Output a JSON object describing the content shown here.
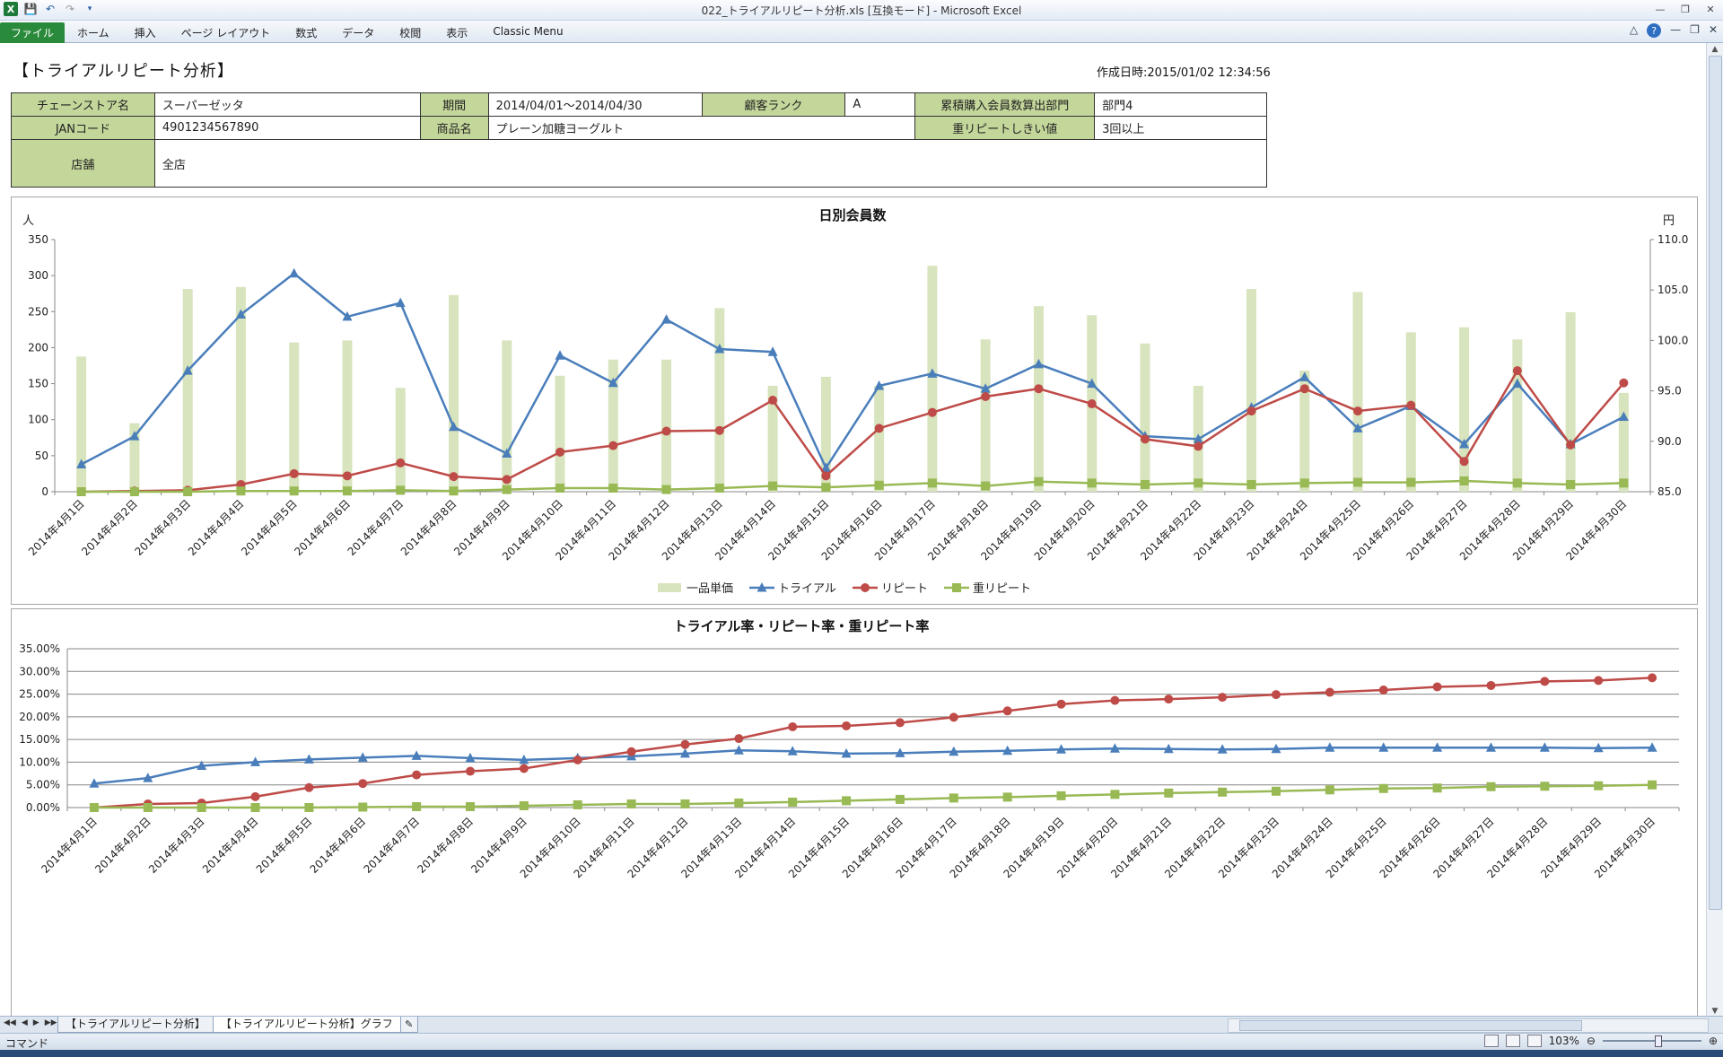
{
  "window": {
    "title": "022_トライアルリピート分析.xls  [互換モード]  -  Microsoft Excel",
    "controls": [
      "minimize-icon",
      "restore-icon",
      "close-icon"
    ]
  },
  "ribbon": {
    "tabs": [
      "ファイル",
      "ホーム",
      "挿入",
      "ページ レイアウト",
      "数式",
      "データ",
      "校閲",
      "表示",
      "Classic Menu"
    ]
  },
  "sheet": {
    "title": "【トライアルリピート分析】",
    "created": "作成日時:2015/01/02 12:34:56",
    "info": {
      "chain_label": "チェーンストア名",
      "chain_value": "スーパーゼッタ",
      "period_label": "期間",
      "period_value": "2014/04/01～2014/04/30",
      "rank_label": "顧客ランク",
      "rank_value": "A",
      "dept_label": "累積購入会員数算出部門",
      "dept_value": "部門4",
      "jan_label": "JANコード",
      "jan_value": "4901234567890",
      "product_label": "商品名",
      "product_value": "プレーン加糖ヨーグルト",
      "repeat_label": "重リピートしきい値",
      "repeat_value": "3回以上",
      "store_label": "店舗",
      "store_value": "全店"
    }
  },
  "chart_data": [
    {
      "type": "bar+line",
      "title": "日別会員数",
      "ylabel_left": "人",
      "ylabel_right": "円",
      "ylim_left": [
        0,
        350
      ],
      "yticks_left": [
        "0",
        "50",
        "100",
        "150",
        "200",
        "250",
        "300",
        "350"
      ],
      "ylim_right": [
        85,
        110
      ],
      "yticks_right": [
        "85.0",
        "90.0",
        "95.0",
        "100.0",
        "105.0",
        "110.0"
      ],
      "grid": false,
      "legend_position": "bottom",
      "categories": [
        "2014年4月1日",
        "2014年4月2日",
        "2014年4月3日",
        "2014年4月4日",
        "2014年4月5日",
        "2014年4月6日",
        "2014年4月7日",
        "2014年4月8日",
        "2014年4月9日",
        "2014年4月10日",
        "2014年4月11日",
        "2014年4月12日",
        "2014年4月13日",
        "2014年4月14日",
        "2014年4月15日",
        "2014年4月16日",
        "2014年4月17日",
        "2014年4月18日",
        "2014年4月19日",
        "2014年4月20日",
        "2014年4月21日",
        "2014年4月22日",
        "2014年4月23日",
        "2014年4月24日",
        "2014年4月25日",
        "2014年4月26日",
        "2014年4月27日",
        "2014年4月28日",
        "2014年4月29日",
        "2014年4月30日"
      ],
      "series": [
        {
          "name": "一品単価",
          "kind": "bar",
          "axis": "right",
          "color": "#d7e4bd",
          "values": [
            98.4,
            91.8,
            105.1,
            105.3,
            99.8,
            100.0,
            95.3,
            104.5,
            100.0,
            96.5,
            98.1,
            98.1,
            103.2,
            95.5,
            96.4,
            95.5,
            107.4,
            100.1,
            103.4,
            102.5,
            99.7,
            95.5,
            105.1,
            97.0,
            104.8,
            100.8,
            101.3,
            100.1,
            102.8,
            94.8
          ]
        },
        {
          "name": "トライアル",
          "kind": "line",
          "axis": "left",
          "color": "#4a7ebb",
          "marker": "triangle",
          "values": [
            38,
            77,
            168,
            246,
            303,
            243,
            262,
            90,
            53,
            189,
            151,
            239,
            198,
            194,
            33,
            147,
            164,
            143,
            177,
            150,
            77,
            73,
            117,
            159,
            88,
            119,
            66,
            150,
            66,
            104
          ]
        },
        {
          "name": "リピート",
          "kind": "line",
          "axis": "left",
          "color": "#be4b48",
          "marker": "circle",
          "values": [
            0,
            1,
            2,
            10,
            25,
            22,
            40,
            21,
            17,
            55,
            64,
            84,
            85,
            127,
            22,
            88,
            110,
            132,
            143,
            122,
            73,
            63,
            112,
            143,
            112,
            120,
            42,
            168,
            65,
            151
          ]
        },
        {
          "name": "重リピート",
          "kind": "line",
          "axis": "left",
          "color": "#98b954",
          "marker": "square",
          "values": [
            0,
            0,
            0,
            1,
            1,
            1,
            2,
            1,
            3,
            5,
            5,
            3,
            5,
            8,
            6,
            9,
            12,
            8,
            14,
            12,
            10,
            12,
            10,
            12,
            13,
            13,
            15,
            12,
            10,
            12
          ]
        }
      ]
    },
    {
      "type": "line",
      "title": "トライアル率・リピート率・重リピート率",
      "ylim": [
        0,
        35
      ],
      "yticks": [
        "0.00%",
        "5.00%",
        "10.00%",
        "15.00%",
        "20.00%",
        "25.00%",
        "30.00%",
        "35.00%"
      ],
      "grid": true,
      "legend_position": "bottom",
      "categories": [
        "2014年4月1日",
        "2014年4月2日",
        "2014年4月3日",
        "2014年4月4日",
        "2014年4月5日",
        "2014年4月6日",
        "2014年4月7日",
        "2014年4月8日",
        "2014年4月9日",
        "2014年4月10日",
        "2014年4月11日",
        "2014年4月12日",
        "2014年4月13日",
        "2014年4月14日",
        "2014年4月15日",
        "2014年4月16日",
        "2014年4月17日",
        "2014年4月18日",
        "2014年4月19日",
        "2014年4月20日",
        "2014年4月21日",
        "2014年4月22日",
        "2014年4月23日",
        "2014年4月24日",
        "2014年4月25日",
        "2014年4月26日",
        "2014年4月27日",
        "2014年4月28日",
        "2014年4月29日",
        "2014年4月30日"
      ],
      "series": [
        {
          "name": "トライアル率",
          "color": "#4a7ebb",
          "marker": "triangle",
          "values": [
            5.3,
            6.5,
            9.2,
            10.0,
            10.6,
            11.0,
            11.4,
            10.9,
            10.5,
            10.9,
            11.3,
            11.9,
            12.6,
            12.4,
            11.9,
            12.0,
            12.3,
            12.5,
            12.8,
            13.0,
            12.9,
            12.8,
            12.9,
            13.2,
            13.2,
            13.2,
            13.2,
            13.2,
            13.1,
            13.2
          ]
        },
        {
          "name": "リピート率",
          "color": "#be4b48",
          "marker": "circle",
          "values": [
            0.0,
            0.8,
            1.0,
            2.4,
            4.4,
            5.3,
            7.2,
            8.0,
            8.6,
            10.5,
            12.3,
            13.9,
            15.2,
            17.8,
            18.0,
            18.7,
            19.9,
            21.3,
            22.8,
            23.6,
            23.9,
            24.3,
            24.9,
            25.4,
            25.9,
            26.6,
            26.9,
            27.8,
            28.0,
            28.6
          ]
        },
        {
          "name": "重リピート率",
          "color": "#98b954",
          "marker": "square",
          "values": [
            0.0,
            0.0,
            0.0,
            0.0,
            0.0,
            0.1,
            0.2,
            0.2,
            0.4,
            0.6,
            0.8,
            0.8,
            1.0,
            1.2,
            1.5,
            1.8,
            2.1,
            2.3,
            2.6,
            2.9,
            3.2,
            3.4,
            3.6,
            3.9,
            4.2,
            4.3,
            4.6,
            4.7,
            4.8,
            5.0
          ]
        }
      ]
    }
  ],
  "sheet_tabs": [
    "【トライアルリピート分析】",
    "【トライアルリピート分析】グラフ"
  ],
  "status": {
    "mode": "コマンド",
    "zoom": "103%"
  }
}
